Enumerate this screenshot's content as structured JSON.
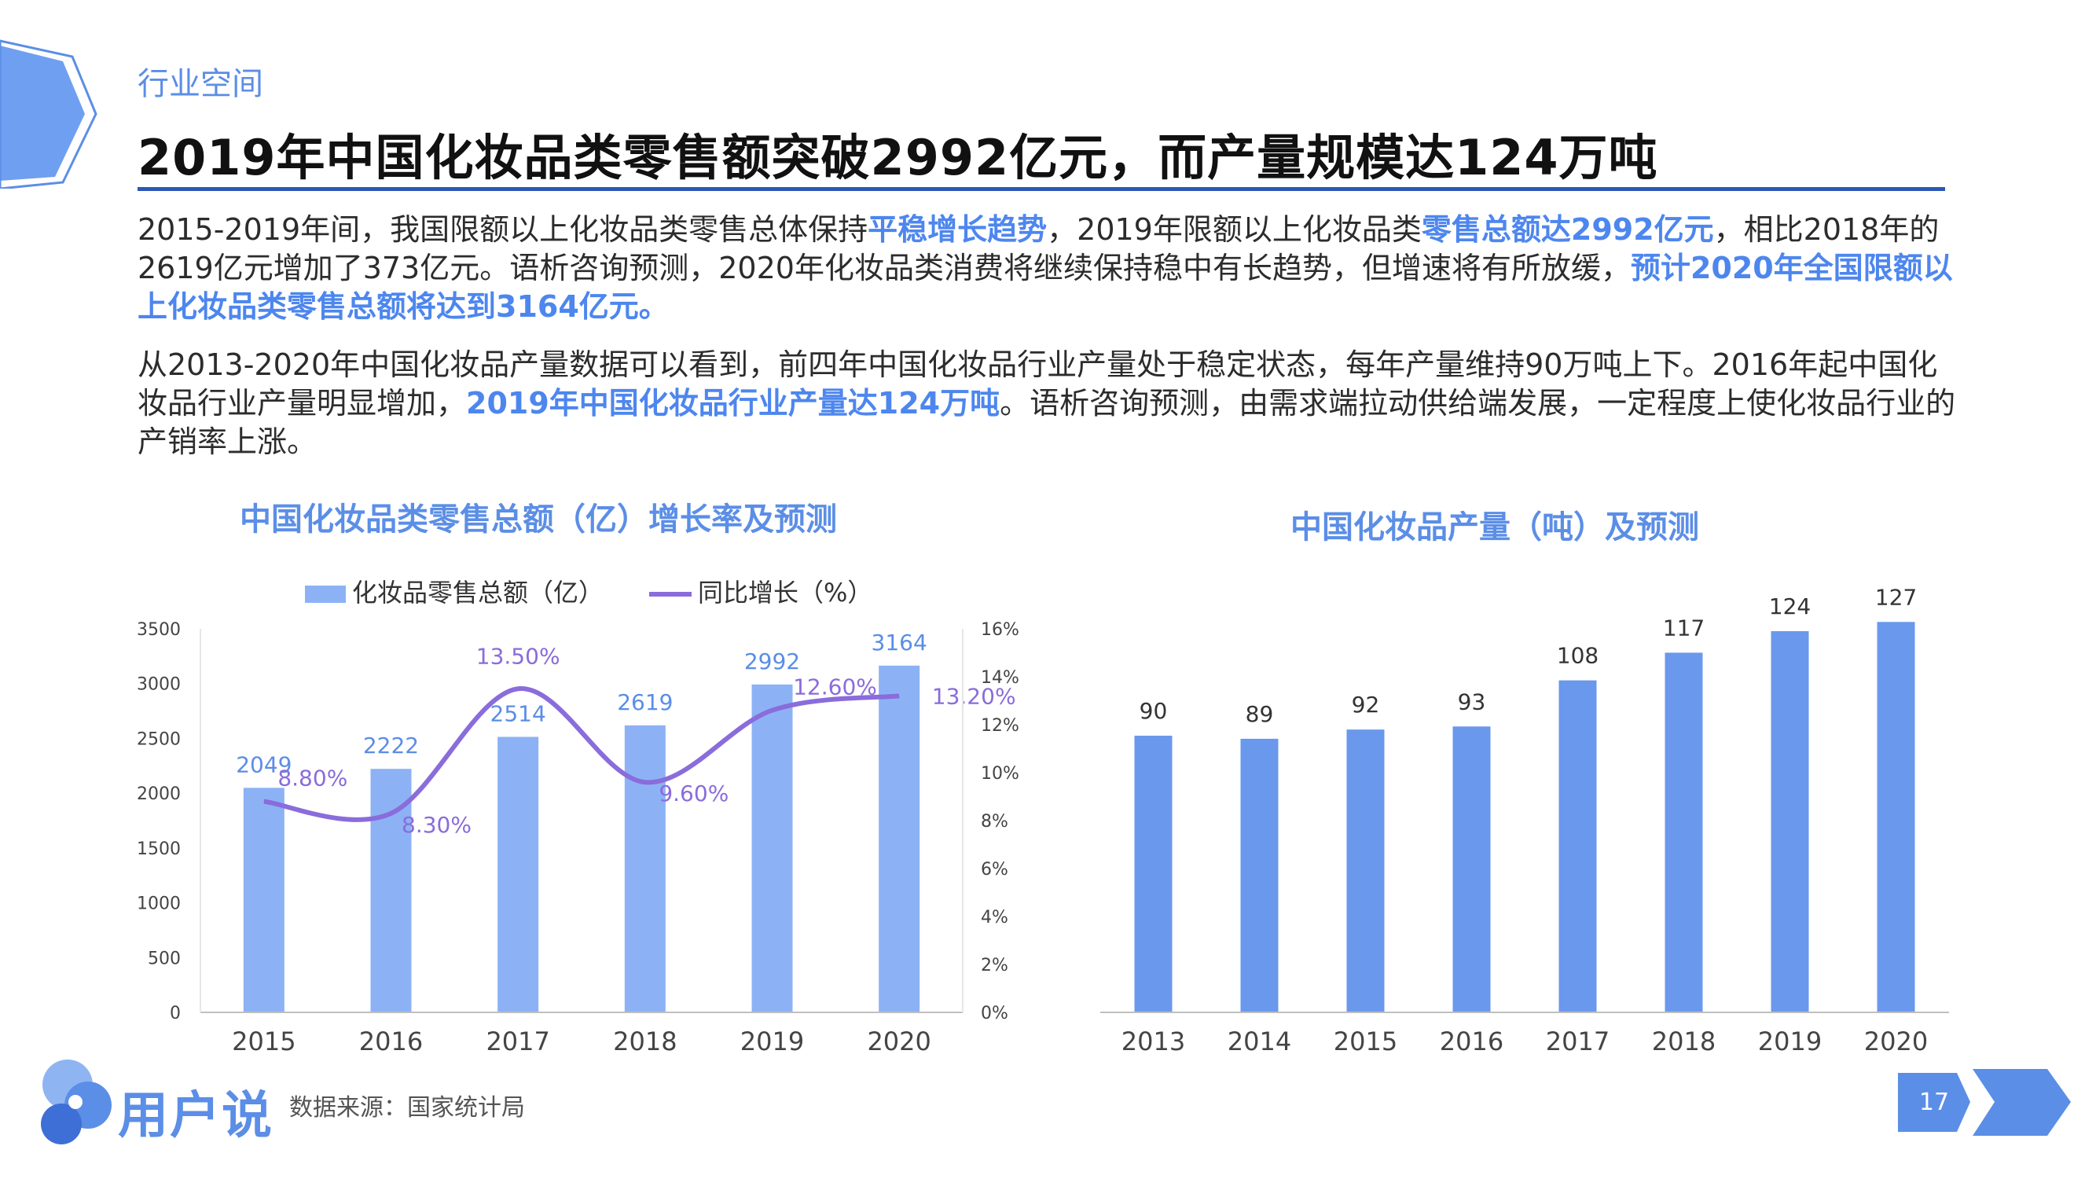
{
  "section_tag": "行业空间",
  "title": "2019年中国化妆品类零售额突破2992亿元，而产量规模达124万吨",
  "paragraph1": [
    {
      "text": "2015-2019年间，我国限额以上化妆品类零售总体保持",
      "hl": false
    },
    {
      "text": "平稳增长趋势",
      "hl": true
    },
    {
      "text": "，2019年限额以上化妆品类",
      "hl": false
    },
    {
      "text": "零售总额达2992亿元",
      "hl": true
    },
    {
      "text": "，相比2018年的2619亿元增加了373亿元。语析咨询预测，2020年化妆品类消费将继续保持稳中有长趋势，但增速将有所放缓，",
      "hl": false
    },
    {
      "text": "预计2020年全国限额以上化妆品类零售总额将达到3164亿元。",
      "hl": true
    }
  ],
  "paragraph2": [
    {
      "text": "从2013-2020年中国化妆品产量数据可以看到，前四年中国化妆品行业产量处于稳定状态，每年产量维持90万吨上下。2016年起中国化妆品行业产量明显增加，",
      "hl": false
    },
    {
      "text": "2019年中国化妆品行业产量达124万吨",
      "hl": true
    },
    {
      "text": "。语析咨询预测，由需求端拉动供给端发展，一定程度上使化妆品行业的产销率上涨。",
      "hl": false
    }
  ],
  "chart_data": [
    {
      "type": "bar",
      "title": "中国化妆品类零售总额（亿）增长率及预测",
      "categories": [
        "2015",
        "2016",
        "2017",
        "2018",
        "2019",
        "2020"
      ],
      "series": [
        {
          "name": "化妆品零售总额（亿）",
          "type": "bar",
          "axis": "left",
          "values": [
            2049,
            2222,
            2514,
            2619,
            2992,
            3164
          ],
          "labels": [
            "2049",
            "2222",
            "2514",
            "2619",
            "2992",
            "3164"
          ]
        },
        {
          "name": "同比增长（%）",
          "type": "line",
          "axis": "right",
          "values": [
            8.8,
            8.3,
            13.5,
            9.6,
            12.6,
            13.2
          ],
          "labels": [
            "8.80%",
            "8.30%",
            "13.50%",
            "9.60%",
            "12.60%",
            "13.20%"
          ]
        }
      ],
      "ylim_left": [
        0,
        3500
      ],
      "yticks_left": [
        "3500",
        "3000",
        "2500",
        "2000",
        "1500",
        "1000",
        "500",
        "0"
      ],
      "ylim_right": [
        0,
        16
      ],
      "yticks_right": [
        "16%",
        "14%",
        "12%",
        "10%",
        "8%",
        "6%",
        "4%",
        "2%",
        "0%"
      ],
      "legend": "top",
      "colors": {
        "bar": "#8cb2f5",
        "line": "#8a6cdb",
        "bar_label": "#5a8de6",
        "line_label": "#8a6cdb"
      }
    },
    {
      "type": "bar",
      "title": "中国化妆品产量（吨）及预测",
      "categories": [
        "2013",
        "2014",
        "2015",
        "2016",
        "2017",
        "2018",
        "2019",
        "2020"
      ],
      "values": [
        90,
        89,
        92,
        93,
        108,
        117,
        124,
        127
      ],
      "labels": [
        "90",
        "89",
        "92",
        "93",
        "108",
        "117",
        "124",
        "127"
      ],
      "ylim": [
        0,
        135
      ],
      "colors": {
        "bar": "#6a98ec"
      }
    }
  ],
  "footer": {
    "brand": "用户说",
    "source": "数据来源：国家统计局",
    "page": "17"
  }
}
